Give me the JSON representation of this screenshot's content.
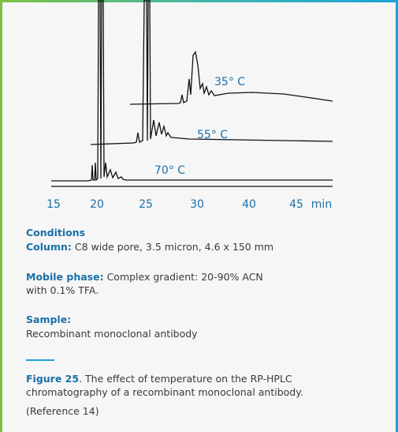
{
  "figure": {
    "trace_labels": [
      "35° C",
      "55° C",
      "70° C"
    ],
    "x_ticks": [
      "15",
      "20",
      "25",
      "30",
      "40",
      "45"
    ],
    "x_unit": "min"
  },
  "conditions": {
    "title": "Conditions",
    "column": {
      "label": "Column:",
      "text": "C8 wide pore, 3.5 micron, 4.6 x 150 mm"
    },
    "mobile_phase": {
      "label": "Mobile phase:",
      "lines": [
        "Complex gradient: 20-90% ACN",
        "with 0.1% TFA."
      ]
    },
    "sample": {
      "label": "Sample:",
      "text": "Recombinant monoclonal antibody"
    }
  },
  "caption": {
    "label": "Figure 25",
    "lines": [
      ". The effect of temperature on the RP-HPLC",
      "chromatography of a recombinant monoclonal antibody."
    ],
    "reference": "(Reference 14)"
  }
}
